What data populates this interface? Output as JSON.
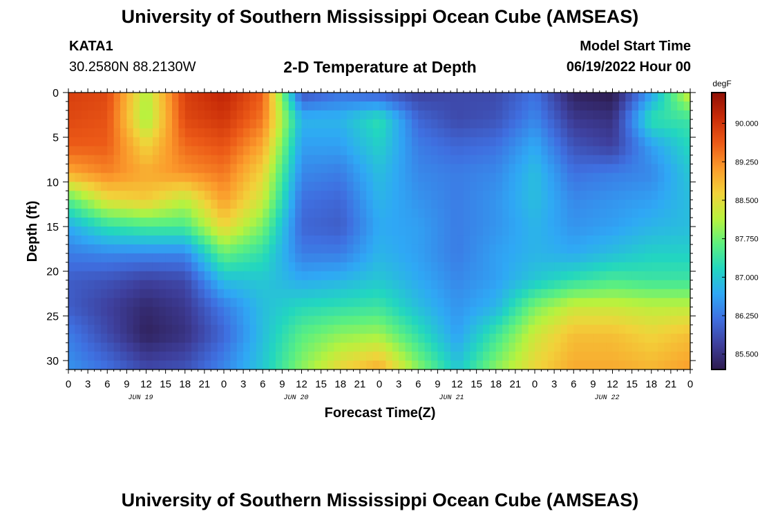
{
  "header": {
    "title": "University of Southern Mississippi Ocean Cube (AMSEAS)",
    "station_name": "KATA1",
    "station_coords": "30.2580N  88.2130W",
    "plot_title": "2-D Temperature at Depth",
    "model_start_label": "Model Start Time",
    "model_start_value": "06/19/2022 Hour 00"
  },
  "footer": {
    "title": "University of Southern Mississippi Ocean Cube (AMSEAS)"
  },
  "chart_data": {
    "type": "heatmap",
    "title": "2-D Temperature at Depth",
    "xlabel": "Forecast Time(Z)",
    "ylabel": "Depth (ft)",
    "x_tick_labels": [
      "0",
      "3",
      "6",
      "9",
      "12",
      "15",
      "18",
      "21",
      "0",
      "3",
      "6",
      "9",
      "12",
      "15",
      "18",
      "21",
      "0",
      "3",
      "6",
      "9",
      "12",
      "15",
      "18",
      "21",
      "0",
      "3",
      "6",
      "9",
      "12",
      "15",
      "18",
      "21",
      "0"
    ],
    "date_labels": [
      "JUN 19",
      "JUN 20",
      "JUN 21",
      "JUN 22"
    ],
    "x_range_hours": [
      0,
      96
    ],
    "y_ticks": [
      0,
      5,
      10,
      15,
      20,
      25,
      30
    ],
    "ylim": [
      0,
      31
    ],
    "colorbar": {
      "unit": "degF",
      "ticks": [
        "90.000",
        "89.250",
        "88.500",
        "87.750",
        "87.000",
        "86.250",
        "85.500"
      ],
      "range": [
        85.2,
        90.6
      ],
      "colors": [
        "#2d1b4e",
        "#3e3f9c",
        "#3f6fe0",
        "#2fa8f5",
        "#22d6c0",
        "#5ef07e",
        "#b8f23e",
        "#f2d23a",
        "#fb9b2c",
        "#ec5a17",
        "#c82b08",
        "#8f0f05"
      ]
    },
    "depths_ft": [
      0,
      3,
      6,
      9,
      12,
      15,
      18,
      21,
      24,
      27,
      31
    ],
    "times_h": [
      0,
      6,
      12,
      18,
      24,
      30,
      36,
      42,
      48,
      54,
      60,
      66,
      72,
      78,
      84,
      90,
      96
    ],
    "values": [
      [
        89.9,
        89.8,
        88.1,
        89.9,
        90.2,
        89.6,
        85.9,
        86.2,
        86.0,
        85.7,
        85.8,
        85.8,
        86.2,
        85.3,
        85.2,
        86.6,
        88.4
      ],
      [
        89.8,
        89.7,
        88.0,
        89.8,
        90.0,
        89.4,
        86.8,
        86.8,
        87.3,
        86.1,
        85.8,
        85.9,
        86.4,
        85.6,
        85.5,
        87.3,
        87.4
      ],
      [
        89.6,
        89.6,
        88.6,
        89.5,
        89.7,
        89.0,
        86.6,
        86.6,
        87.1,
        86.3,
        86.1,
        86.2,
        86.7,
        85.9,
        85.7,
        86.6,
        87.2
      ],
      [
        89.0,
        89.3,
        89.0,
        89.2,
        89.4,
        88.6,
        86.4,
        86.3,
        86.9,
        86.4,
        86.3,
        86.4,
        86.9,
        86.2,
        86.3,
        86.4,
        87.0
      ],
      [
        87.6,
        88.5,
        88.7,
        88.2,
        89.1,
        88.3,
        86.2,
        86.1,
        86.8,
        86.5,
        86.3,
        86.5,
        86.9,
        86.4,
        86.5,
        86.6,
        86.9
      ],
      [
        86.7,
        87.3,
        87.5,
        87.5,
        88.6,
        87.8,
        86.1,
        86.0,
        86.7,
        86.6,
        86.3,
        86.5,
        86.8,
        86.5,
        86.6,
        86.8,
        86.9
      ],
      [
        86.3,
        86.4,
        86.4,
        86.4,
        87.7,
        87.3,
        86.3,
        86.3,
        86.8,
        86.6,
        86.3,
        86.6,
        86.8,
        86.7,
        86.9,
        87.1,
        87.1
      ],
      [
        86.0,
        85.9,
        85.7,
        85.8,
        86.9,
        87.0,
        86.7,
        86.8,
        87.0,
        86.7,
        86.4,
        86.6,
        87.0,
        87.3,
        87.5,
        87.4,
        87.4
      ],
      [
        86.0,
        85.7,
        85.4,
        85.6,
        86.3,
        86.9,
        87.2,
        87.3,
        87.4,
        86.9,
        86.5,
        86.8,
        87.8,
        88.3,
        88.3,
        88.2,
        88.2
      ],
      [
        86.3,
        85.8,
        85.3,
        85.5,
        86.1,
        86.9,
        87.6,
        87.9,
        88.0,
        87.3,
        86.6,
        87.4,
        88.3,
        88.8,
        88.8,
        88.6,
        88.8
      ],
      [
        86.5,
        86.2,
        85.8,
        85.9,
        86.4,
        87.0,
        87.9,
        88.6,
        89.0,
        87.9,
        87.0,
        87.9,
        88.6,
        89.0,
        89.0,
        88.9,
        89.1
      ]
    ]
  }
}
